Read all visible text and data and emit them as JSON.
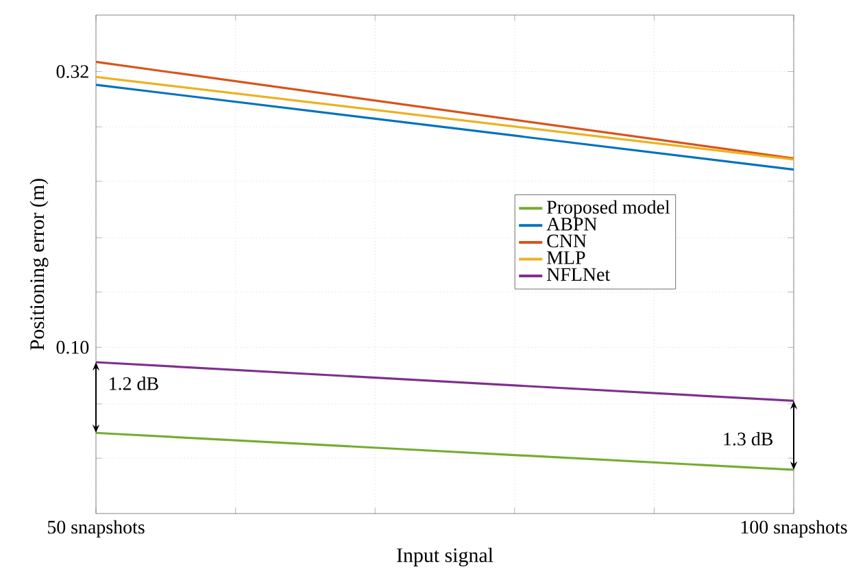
{
  "chart_data": {
    "type": "line",
    "xlabel": "Input signal",
    "ylabel": "Positioning error (m)",
    "x": [
      50,
      100
    ],
    "xlim": [
      50,
      100
    ],
    "xticks": [
      {
        "value": 50,
        "label": "50 snapshots"
      },
      {
        "value": 60,
        "label": null
      },
      {
        "value": 70,
        "label": null
      },
      {
        "value": 80,
        "label": null
      },
      {
        "value": 90,
        "label": null
      },
      {
        "value": 100,
        "label": "100 snapshots"
      }
    ],
    "series": [
      {
        "name": "Proposed model",
        "color": "#77ac30",
        "values": [
          0.07,
          0.06
        ]
      },
      {
        "name": "ABPN",
        "color": "#0072bd",
        "values": [
          0.299,
          0.21
        ]
      },
      {
        "name": "CNN",
        "color": "#d95319",
        "values": [
          0.329,
          0.22
        ]
      },
      {
        "name": "MLP",
        "color": "#edb120",
        "values": [
          0.309,
          0.219
        ]
      },
      {
        "name": "NFLNet",
        "color": "#7e2f8e",
        "values": [
          0.094,
          0.08
        ]
      }
    ],
    "log": "y",
    "ylim": [
      0.05,
      0.4
    ],
    "yticks": [
      {
        "value": 0.063,
        "label": null
      },
      {
        "value": 0.079,
        "label": null
      },
      {
        "value": 0.1,
        "label": "0.10"
      },
      {
        "value": 0.126,
        "label": null
      },
      {
        "value": 0.158,
        "label": null
      },
      {
        "value": 0.2,
        "label": null
      },
      {
        "value": 0.251,
        "label": null
      },
      {
        "value": 0.316,
        "label": "0.32"
      }
    ],
    "grid": true,
    "legend": "right",
    "marker": "none",
    "line_style": "solid",
    "annotations": [
      "1.2 dB",
      "1.3 dB"
    ]
  }
}
